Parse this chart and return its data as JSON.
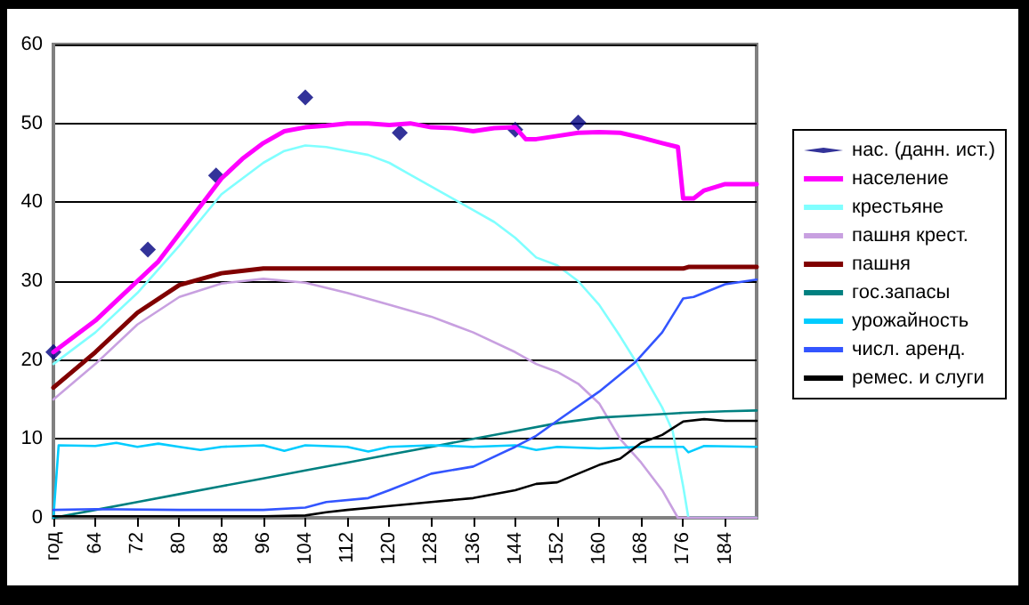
{
  "chart_data": {
    "type": "line",
    "xlim": [
      56,
      190
    ],
    "xticks": [
      {
        "value": 56,
        "label": "год"
      },
      64,
      72,
      80,
      88,
      96,
      104,
      112,
      120,
      128,
      136,
      144,
      152,
      160,
      168,
      176,
      184
    ],
    "ylim": [
      0,
      60
    ],
    "yticks": [
      0,
      10,
      20,
      30,
      40,
      50,
      60
    ],
    "grid": "y",
    "legend": "right",
    "marker": "none",
    "line_style": "solid",
    "series": [
      {
        "name": "нас. (данн. ист.)",
        "type": "scatter",
        "marker": "diamond",
        "color": "#000080",
        "x": [
          56,
          74,
          87,
          104,
          122,
          144,
          156
        ],
        "values": [
          21,
          34,
          43.4,
          53.3,
          48.8,
          49.2,
          50.1
        ]
      },
      {
        "name": "население",
        "color": "#ff00ff",
        "x": [
          56,
          60,
          64,
          68,
          72,
          76,
          80,
          84,
          88,
          92,
          96,
          100,
          104,
          108,
          112,
          116,
          120,
          124,
          128,
          132,
          136,
          140,
          144,
          146,
          148,
          152,
          156,
          160,
          164,
          168,
          172,
          175,
          176,
          178,
          180,
          184,
          190
        ],
        "values": [
          21,
          23,
          25,
          27.5,
          30,
          32.5,
          36,
          39.5,
          43,
          45.5,
          47.5,
          49,
          49.5,
          49.7,
          50,
          50,
          49.8,
          50,
          49.5,
          49.4,
          49,
          49.4,
          49.5,
          48,
          48,
          48.4,
          48.8,
          48.9,
          48.8,
          48.2,
          47.5,
          47,
          40.5,
          40.5,
          41.5,
          42.3,
          42.3
        ]
      },
      {
        "name": "крестьяне",
        "color": "#80ffff",
        "x": [
          56,
          64,
          72,
          80,
          88,
          96,
          100,
          104,
          108,
          112,
          116,
          120,
          124,
          128,
          132,
          136,
          140,
          144,
          148,
          152,
          156,
          160,
          164,
          167,
          172,
          174,
          176,
          177,
          190
        ],
        "values": [
          19.5,
          23.5,
          28.5,
          34.5,
          41,
          45,
          46.5,
          47.2,
          47,
          46.5,
          46,
          45,
          43.5,
          42,
          40.5,
          39,
          37.5,
          35.5,
          33,
          32,
          30,
          27,
          23,
          19.8,
          14,
          11,
          4,
          0,
          0
        ]
      },
      {
        "name": "пашня крест.",
        "color": "#c8a0e0",
        "x": [
          56,
          64,
          72,
          80,
          88,
          96,
          104,
          112,
          120,
          128,
          136,
          144,
          148,
          152,
          156,
          160,
          164,
          168,
          172,
          175,
          190
        ],
        "values": [
          15,
          19.5,
          24.5,
          28,
          29.7,
          30.3,
          29.8,
          28.5,
          27,
          25.5,
          23.5,
          21,
          19.5,
          18.5,
          17,
          14.5,
          10,
          7,
          3.5,
          0,
          0
        ]
      },
      {
        "name": "пашня",
        "color": "#800000",
        "x": [
          56,
          64,
          72,
          80,
          88,
          96,
          104,
          176,
          177,
          190
        ],
        "values": [
          16.5,
          21,
          26,
          29.5,
          31,
          31.6,
          31.6,
          31.6,
          31.8,
          31.8
        ]
      },
      {
        "name": "гос.запасы",
        "color": "#008080",
        "x": [
          56,
          64,
          72,
          80,
          88,
          96,
          104,
          112,
          120,
          128,
          136,
          144,
          152,
          160,
          168,
          176,
          184,
          190
        ],
        "values": [
          0,
          1,
          2,
          3,
          4,
          5,
          6,
          7,
          8,
          9,
          10,
          11,
          12,
          12.7,
          13,
          13.3,
          13.5,
          13.6
        ]
      },
      {
        "name": "урожайность",
        "color": "#00ccff",
        "x": [
          56,
          57,
          64,
          68,
          72,
          76,
          80,
          84,
          88,
          96,
          100,
          104,
          112,
          116,
          120,
          128,
          136,
          144,
          148,
          152,
          160,
          168,
          176,
          177,
          180,
          190
        ],
        "values": [
          0,
          9.2,
          9.1,
          9.5,
          9,
          9.4,
          9,
          8.6,
          9,
          9.2,
          8.5,
          9.2,
          9,
          8.4,
          9,
          9.2,
          9,
          9.2,
          8.6,
          9,
          8.8,
          9,
          9,
          8.3,
          9.1,
          9
        ]
      },
      {
        "name": "числ. аренд.",
        "color": "#3355ff",
        "x": [
          56,
          64,
          80,
          96,
          104,
          108,
          116,
          120,
          128,
          136,
          144,
          148,
          152,
          160,
          167,
          172,
          176,
          178,
          184,
          190
        ],
        "values": [
          1,
          1.1,
          1,
          1,
          1.3,
          2,
          2.5,
          3.5,
          5.6,
          6.5,
          9,
          10.4,
          12.3,
          16,
          19.8,
          23.5,
          27.8,
          28,
          29.6,
          30.2
        ]
      },
      {
        "name": "ремес. и слуги",
        "color": "#000000",
        "x": [
          56,
          96,
          104,
          108,
          112,
          120,
          128,
          136,
          144,
          148,
          152,
          160,
          164,
          168,
          172,
          176,
          180,
          184,
          190
        ],
        "values": [
          0.2,
          0.2,
          0.3,
          0.7,
          1,
          1.5,
          2,
          2.5,
          3.5,
          4.3,
          4.5,
          6.7,
          7.5,
          9.5,
          10.5,
          12.2,
          12.5,
          12.3,
          12.3
        ]
      }
    ]
  }
}
